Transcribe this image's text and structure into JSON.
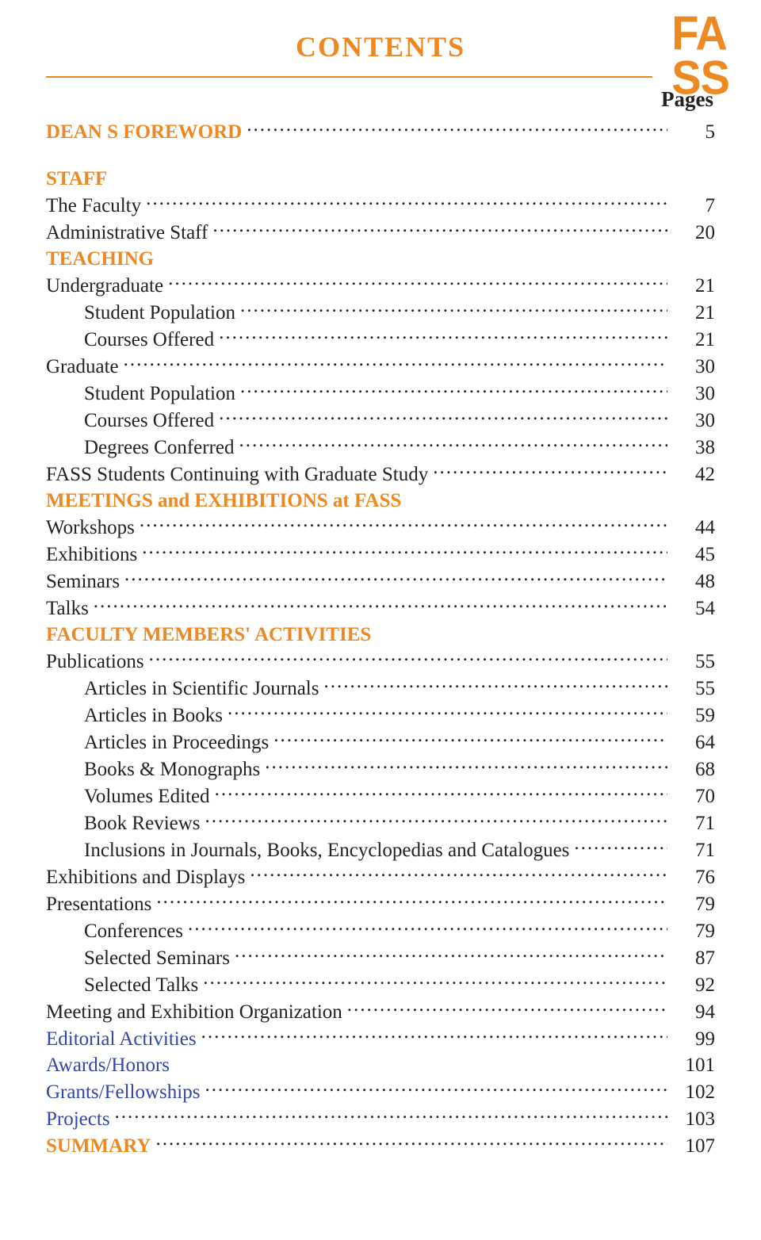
{
  "logo": {
    "line1": "FA",
    "line2": "SS",
    "color": "#ee8822"
  },
  "title": "CONTENTS",
  "pages_label": "Pages",
  "colors": {
    "accent": "#ee8822",
    "text": "#222222",
    "link": "#3344aa",
    "background": "#ffffff"
  },
  "entries": [
    {
      "label": "DEAN S FOREWORD",
      "page": "5",
      "indent": 0,
      "style": "heading",
      "leader": "dots",
      "gap_after": true
    },
    {
      "label": "STAFF",
      "page": "",
      "indent": 0,
      "style": "heading",
      "leader": "none"
    },
    {
      "label": "The Faculty",
      "page": "7",
      "indent": 0,
      "style": "normal",
      "leader": "dots"
    },
    {
      "label": "Administrative Staff",
      "page": "20",
      "indent": 0,
      "style": "normal",
      "leader": "dots"
    },
    {
      "label": "TEACHING",
      "page": "",
      "indent": 0,
      "style": "heading",
      "leader": "none"
    },
    {
      "label": "Undergraduate",
      "page": "21",
      "indent": 0,
      "style": "normal",
      "leader": "dots"
    },
    {
      "label": "Student Population",
      "page": "21",
      "indent": 1,
      "style": "normal",
      "leader": "dots"
    },
    {
      "label": "Courses Offered",
      "page": "21",
      "indent": 1,
      "style": "normal",
      "leader": "dots"
    },
    {
      "label": "Graduate",
      "page": "30",
      "indent": 0,
      "style": "normal",
      "leader": "dots"
    },
    {
      "label": "Student Population",
      "page": "30",
      "indent": 1,
      "style": "normal",
      "leader": "dots"
    },
    {
      "label": "Courses Offered",
      "page": "30",
      "indent": 1,
      "style": "normal",
      "leader": "dots"
    },
    {
      "label": "Degrees Conferred",
      "page": "38",
      "indent": 1,
      "style": "normal",
      "leader": "dots"
    },
    {
      "label": "FASS Students Continuing with Graduate Study",
      "page": "42",
      "indent": 0,
      "style": "normal",
      "leader": "dots"
    },
    {
      "label": "MEETINGS and EXHIBITIONS at FASS",
      "page": "",
      "indent": 0,
      "style": "heading",
      "leader": "none"
    },
    {
      "label": "Workshops",
      "page": "44",
      "indent": 0,
      "style": "normal",
      "leader": "dots"
    },
    {
      "label": "Exhibitions",
      "page": "45",
      "indent": 0,
      "style": "normal",
      "leader": "dots"
    },
    {
      "label": "Seminars",
      "page": "48",
      "indent": 0,
      "style": "normal",
      "leader": "dots"
    },
    {
      "label": "Talks",
      "page": "54",
      "indent": 0,
      "style": "normal",
      "leader": "dots"
    },
    {
      "label": "FACULTY MEMBERS' ACTIVITIES",
      "page": "",
      "indent": 0,
      "style": "heading",
      "leader": "none"
    },
    {
      "label": "Publications",
      "page": "55",
      "indent": 0,
      "style": "normal",
      "leader": "dots"
    },
    {
      "label": "Articles in Scientific Journals",
      "page": "55",
      "indent": 1,
      "style": "normal",
      "leader": "dots"
    },
    {
      "label": "Articles in Books",
      "page": "59",
      "indent": 1,
      "style": "normal",
      "leader": "dots"
    },
    {
      "label": "Articles in Proceedings",
      "page": "64",
      "indent": 1,
      "style": "normal",
      "leader": "dots"
    },
    {
      "label": "Books & Monographs",
      "page": "68",
      "indent": 1,
      "style": "normal",
      "leader": "dots"
    },
    {
      "label": "Volumes Edited",
      "page": "70",
      "indent": 1,
      "style": "normal",
      "leader": "dots"
    },
    {
      "label": "Book Reviews",
      "page": "71",
      "indent": 1,
      "style": "normal",
      "leader": "dots"
    },
    {
      "label": "Inclusions in  Journals, Books, Encyclopedias and Catalogues",
      "page": "71",
      "indent": 1,
      "style": "normal",
      "leader": "dots"
    },
    {
      "label": "Exhibitions and Displays",
      "page": "76",
      "indent": 0,
      "style": "normal",
      "leader": "dots"
    },
    {
      "label": "Presentations",
      "page": "79",
      "indent": 0,
      "style": "normal",
      "leader": "dots"
    },
    {
      "label": "Conferences",
      "page": "79",
      "indent": 1,
      "style": "normal",
      "leader": "dots"
    },
    {
      "label": "Selected Seminars",
      "page": "87",
      "indent": 1,
      "style": "normal",
      "leader": "dots"
    },
    {
      "label": "Selected Talks",
      "page": "92",
      "indent": 1,
      "style": "normal",
      "leader": "dots"
    },
    {
      "label": "Meeting and Exhibition Organization",
      "page": "94",
      "indent": 0,
      "style": "normal",
      "leader": "dots"
    },
    {
      "label": "Editorial Activities",
      "page": "99",
      "indent": 0,
      "style": "link",
      "leader": "dots"
    },
    {
      "label": "Awards/Honors",
      "page": "101",
      "indent": 0,
      "style": "link",
      "leader": "space"
    },
    {
      "label": "Grants/Fellowships",
      "page": "102",
      "indent": 0,
      "style": "link",
      "leader": "dots"
    },
    {
      "label": "Projects",
      "page": "103",
      "indent": 0,
      "style": "link",
      "leader": "dots"
    },
    {
      "label": "SUMMARY",
      "page": "107",
      "indent": 0,
      "style": "heading",
      "leader": "dots"
    }
  ]
}
